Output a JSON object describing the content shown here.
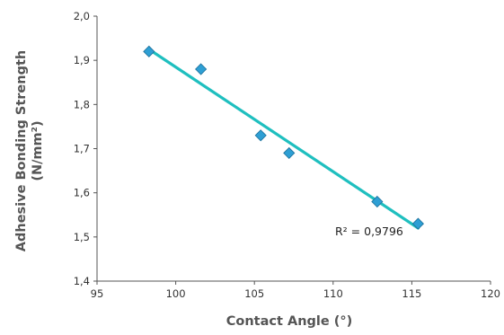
{
  "chart_data": {
    "type": "scatter",
    "title": "",
    "xlabel": "Contact Angle (°)",
    "ylabel_line1": "Adhesive Bonding Strength",
    "ylabel_line2": "(N/mm²)",
    "xlim": [
      95,
      120
    ],
    "ylim": [
      1.4,
      2.0
    ],
    "x_ticks": [
      "95",
      "100",
      "105",
      "110",
      "115",
      "120"
    ],
    "y_ticks": [
      "1,4",
      "1,5",
      "1,6",
      "1,7",
      "1,8",
      "1,9",
      "2,0"
    ],
    "grid": false,
    "points": [
      {
        "x": 98.3,
        "y": 1.92
      },
      {
        "x": 101.6,
        "y": 1.88
      },
      {
        "x": 105.4,
        "y": 1.73
      },
      {
        "x": 107.2,
        "y": 1.69
      },
      {
        "x": 112.8,
        "y": 1.58
      },
      {
        "x": 115.4,
        "y": 1.53
      }
    ],
    "trendline": {
      "type": "linear",
      "x": [
        98.3,
        115.4
      ],
      "y": [
        1.925,
        1.52
      ],
      "label": "R² = 0,9796"
    },
    "colors": {
      "marker_fill": "#2e9fd4",
      "marker_stroke": "#1a6f9a",
      "trendline": "#1fbfbf",
      "axis": "#555555"
    }
  }
}
